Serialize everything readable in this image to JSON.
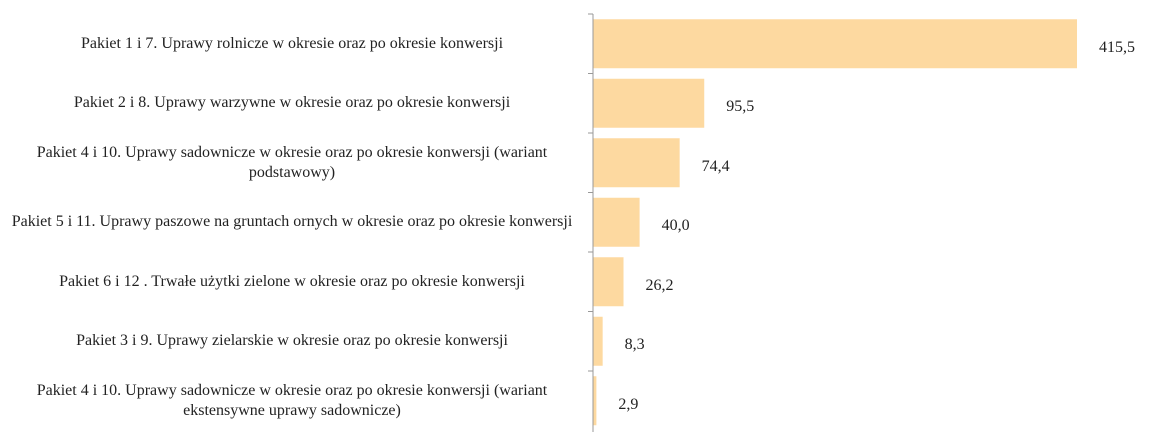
{
  "chart_data": {
    "type": "hbar",
    "categories": [
      "Pakiet 1 i 7. Uprawy rolnicze w okresie oraz po okresie konwersji",
      "Pakiet 2 i 8. Uprawy warzywne w okresie oraz po okresie konwersji",
      "Pakiet 4 i 10. Uprawy sadownicze w okresie oraz po okresie konwersji (wariant podstawowy)",
      "Pakiet 5 i 11. Uprawy paszowe na gruntach ornych w okresie oraz po okresie konwersji",
      "Pakiet 6 i 12 . Trwałe użytki zielone w okresie oraz po okresie konwersji",
      "Pakiet 3 i 9. Uprawy zielarskie w okresie oraz po okresie konwersji",
      "Pakiet 4 i 10. Uprawy sadownicze w okresie oraz po okresie konwersji (wariant ekstensywne uprawy sadownicze)"
    ],
    "values": [
      415.5,
      95.5,
      74.4,
      40.0,
      26.2,
      8.3,
      2.9
    ],
    "value_labels": [
      "415,5",
      "95,5",
      "74,4",
      "40,0",
      "26,2",
      "8,3",
      "2,9"
    ],
    "color": "#fdd9a0"
  }
}
